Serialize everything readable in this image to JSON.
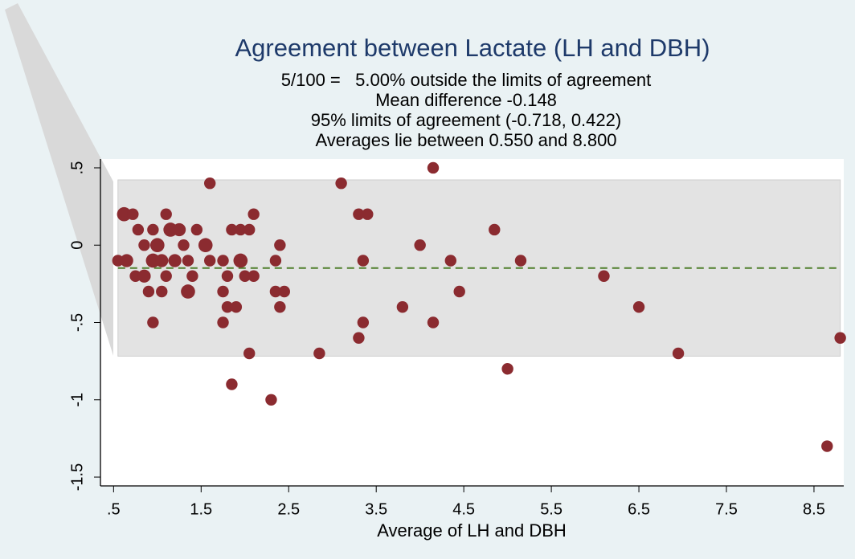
{
  "chart_data": {
    "type": "scatter",
    "title": "Agreement between Lactate (LH and DBH)",
    "subtitle": [
      "5/100 =   5.00% outside the limits of agreement",
      "Mean difference -0.148",
      "95% limits of agreement (-0.718, 0.422)",
      "Averages lie between 0.550 and 8.800"
    ],
    "x_label": "Average of LH and DBH",
    "x": [
      0.62,
      0.72,
      0.55,
      0.65,
      0.78,
      0.75,
      0.85,
      0.85,
      0.9,
      0.95,
      0.95,
      0.95,
      1.0,
      1.05,
      1.05,
      1.1,
      1.1,
      1.15,
      1.2,
      1.25,
      1.3,
      1.35,
      1.35,
      1.4,
      1.45,
      1.55,
      1.6,
      1.6,
      1.75,
      1.75,
      1.75,
      1.8,
      1.8,
      1.85,
      1.85,
      1.9,
      1.95,
      1.95,
      2.0,
      2.05,
      2.05,
      2.1,
      2.1,
      2.3,
      2.35,
      2.35,
      2.4,
      2.4,
      2.45,
      2.85,
      3.1,
      3.3,
      3.3,
      3.35,
      3.35,
      3.4,
      3.8,
      4.0,
      4.15,
      4.15,
      4.35,
      4.45,
      4.85,
      5.0,
      5.15,
      6.1,
      6.5,
      6.95,
      8.65,
      8.8
    ],
    "series": [
      {
        "color": "#8b2b30",
        "values": [
          0.2,
          0.2,
          -0.1,
          -0.1,
          0.1,
          -0.2,
          0,
          -0.2,
          -0.3,
          0.1,
          -0.1,
          -0.5,
          0,
          -0.1,
          -0.3,
          0.2,
          -0.2,
          0.1,
          -0.1,
          0.1,
          0,
          -0.1,
          -0.3,
          -0.2,
          0.1,
          0,
          0.4,
          -0.1,
          -0.1,
          -0.3,
          -0.5,
          -0.2,
          -0.4,
          0.1,
          -0.9,
          -0.4,
          -0.1,
          0.1,
          -0.2,
          0.1,
          -0.7,
          0.2,
          -0.2,
          -1.0,
          -0.1,
          -0.3,
          0,
          -0.4,
          -0.3,
          -0.7,
          0.4,
          0.2,
          -0.6,
          -0.1,
          -0.5,
          0.2,
          -0.4,
          0,
          0.5,
          -0.5,
          -0.1,
          -0.3,
          0.1,
          -0.8,
          -0.1,
          -0.2,
          -0.4,
          -0.7,
          -1.3,
          -0.6
        ],
        "sizes": [
          3,
          1,
          1,
          2,
          1,
          1,
          1,
          2,
          1,
          1,
          3,
          1,
          3,
          2,
          1,
          1,
          1,
          3,
          2,
          2,
          1,
          1,
          3,
          1,
          1,
          3,
          1,
          1,
          1,
          1,
          1,
          1,
          1,
          1,
          1,
          1,
          3,
          1,
          1,
          1,
          1,
          1,
          1,
          1,
          1,
          1,
          1,
          1,
          1,
          1,
          1,
          1,
          1,
          1,
          1,
          1,
          1,
          1,
          1,
          1,
          1,
          1,
          1,
          1,
          1,
          1,
          1,
          1,
          1,
          1
        ]
      }
    ],
    "limits_of_agreement": [
      -0.718,
      0.422
    ],
    "mean_difference": -0.148,
    "average_range": [
      0.55,
      8.8
    ],
    "band_color": "#e3e3e3",
    "mean_line_color": "#4f7f2c",
    "xlim": [
      0.35,
      8.84
    ],
    "ylim": [
      -1.557,
      0.557
    ],
    "xticks": [
      {
        "value": 0.5,
        "label": ".5"
      },
      1.5,
      2.5,
      3.5,
      4.5,
      5.5,
      6.5,
      7.5,
      8.5
    ],
    "yticks": [
      {
        "value": 0.5,
        "label": ".5"
      },
      0,
      {
        "value": -0.5,
        "label": "-.5"
      },
      -1,
      -1.5
    ]
  }
}
